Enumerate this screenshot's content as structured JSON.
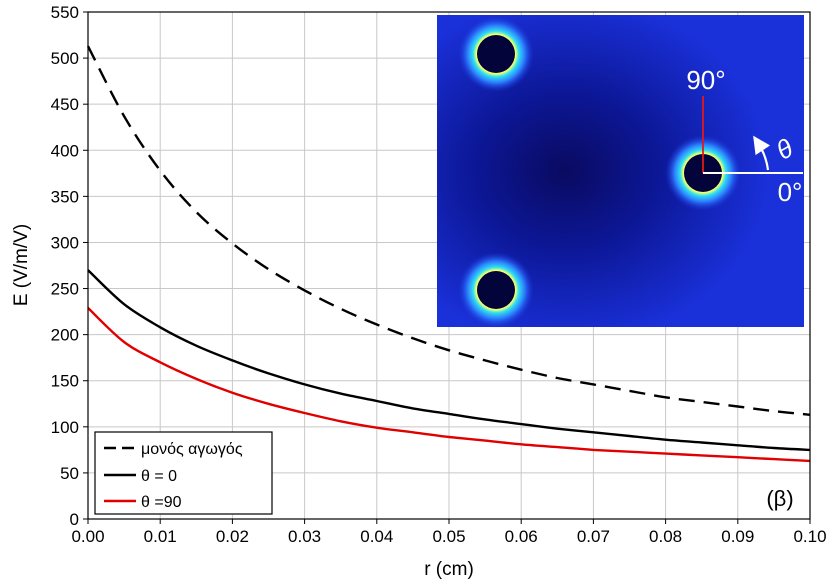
{
  "chart_data": {
    "type": "line",
    "xlabel": "r (cm)",
    "ylabel": "E (V/m/V)",
    "xlim": [
      0,
      0.1
    ],
    "ylim": [
      0,
      550
    ],
    "x_ticks": [
      "0.00",
      "0.01",
      "0.02",
      "0.03",
      "0.04",
      "0.05",
      "0.06",
      "0.07",
      "0.08",
      "0.09",
      "0.10"
    ],
    "y_ticks": [
      "0",
      "50",
      "100",
      "150",
      "200",
      "250",
      "300",
      "350",
      "400",
      "450",
      "500",
      "550"
    ],
    "grid": true,
    "legend_position": "bottom-left",
    "panel_label": "(β)",
    "series": [
      {
        "name": "μονός αγωγός",
        "color": "#000000",
        "style": "dashed",
        "x": [
          0,
          0.005,
          0.01,
          0.015,
          0.02,
          0.025,
          0.03,
          0.035,
          0.04,
          0.045,
          0.05,
          0.055,
          0.06,
          0.065,
          0.07,
          0.075,
          0.08,
          0.085,
          0.09,
          0.095,
          0.1
        ],
        "y": [
          513,
          437,
          378,
          333,
          299,
          271,
          248,
          228,
          211,
          196,
          183,
          172,
          162,
          153,
          146,
          139,
          132,
          127,
          122,
          117,
          113
        ]
      },
      {
        "name": "θ = 0",
        "color": "#000000",
        "style": "solid",
        "x": [
          0,
          0.005,
          0.01,
          0.015,
          0.02,
          0.025,
          0.03,
          0.035,
          0.04,
          0.045,
          0.05,
          0.055,
          0.06,
          0.065,
          0.07,
          0.075,
          0.08,
          0.085,
          0.09,
          0.095,
          0.1
        ],
        "y": [
          270,
          233,
          208,
          188,
          172,
          158,
          146,
          136,
          128,
          120,
          114,
          108,
          103,
          98,
          94,
          90,
          86,
          83,
          80,
          77,
          75
        ]
      },
      {
        "name": "θ =90",
        "color": "#e00000",
        "style": "solid",
        "x": [
          0,
          0.005,
          0.01,
          0.015,
          0.02,
          0.025,
          0.03,
          0.035,
          0.04,
          0.045,
          0.05,
          0.055,
          0.06,
          0.065,
          0.07,
          0.075,
          0.08,
          0.085,
          0.09,
          0.095,
          0.1
        ],
        "y": [
          229,
          192,
          170,
          152,
          137,
          125,
          115,
          106,
          99,
          94,
          89,
          85,
          81,
          78,
          75,
          73,
          71,
          69,
          67,
          65,
          63
        ]
      }
    ]
  },
  "inset": {
    "label_90": "90°",
    "label_0": "0°",
    "label_theta": "θ",
    "colors": {
      "background": "#1a2fd6",
      "dark_center": "#0b0a64",
      "conductor": "#02043a",
      "halo_glow": "#f0ff60"
    }
  }
}
